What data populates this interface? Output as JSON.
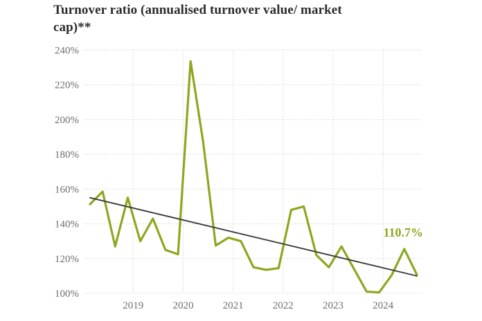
{
  "chart": {
    "title_lines": [
      "Turnover ratio (annualised turnover value/ market",
      "cap)**"
    ],
    "colors": {
      "series_green": "#8BA81F",
      "trend_black": "#3B3B3B",
      "grid_gray": "#CFCFCF",
      "tick_text_gray": "#6E6E6E",
      "title_text": "#2B2B2B"
    }
  },
  "chart_data": {
    "type": "line",
    "title": "Turnover ratio (annualised turnover value/ market cap)**",
    "ylabel": "",
    "xlabel": "",
    "ylim": [
      100,
      240
    ],
    "grid": "dotted horizontal and vertical",
    "legend_position": "none",
    "points_per_year": 4,
    "y_tick_values": [
      100,
      120,
      140,
      160,
      180,
      200,
      220,
      240
    ],
    "y_tick_labels": [
      "100%",
      "120%",
      "140%",
      "160%",
      "180%",
      "200%",
      "220%",
      "240%"
    ],
    "x_tick_labels": [
      "2019",
      "2020",
      "2021",
      "2022",
      "2023",
      "2024"
    ],
    "series": [
      {
        "name": "turnover-ratio",
        "color": "#8BA81F",
        "values": [
          151.3,
          158.5,
          127,
          155,
          130,
          143,
          125,
          122.5,
          233.5,
          187,
          127.5,
          132,
          130,
          115,
          113.5,
          114.5,
          148,
          150,
          122,
          115,
          127,
          114,
          101,
          100.5,
          110.5,
          125.5,
          110.7
        ]
      },
      {
        "name": "trend-line",
        "color": "#3B3B3B",
        "values_endpoints": [
          155,
          110
        ]
      }
    ],
    "annotation": {
      "text": "110.7%",
      "color": "#8BA81F"
    }
  }
}
